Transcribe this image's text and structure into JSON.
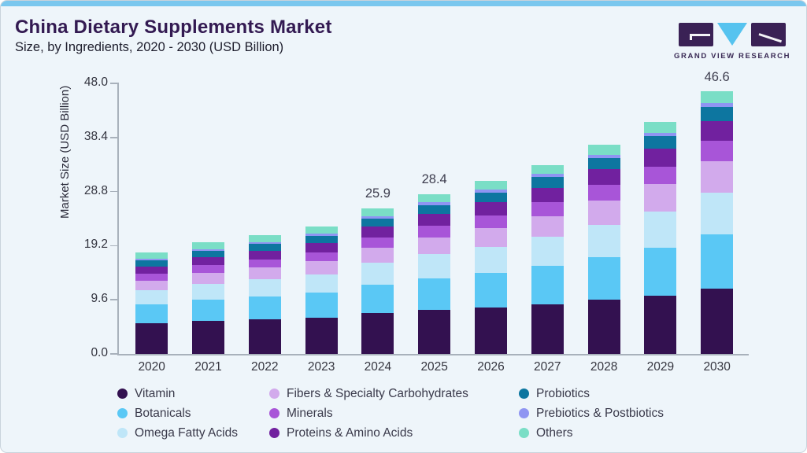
{
  "header": {
    "title": "China Dietary Supplements Market",
    "subtitle": "Size, by Ingredients, 2020 - 2030 (USD Billion)"
  },
  "logo": {
    "text": "GRAND VIEW RESEARCH",
    "rect_color": "#3a2155",
    "triangle_color": "#56c3ef"
  },
  "colors": {
    "card_bg": "#eef5fa",
    "top_strip": "#7ac7ee",
    "axis": "#a8b1bb",
    "title_text": "#331a52"
  },
  "chart_data": {
    "type": "bar",
    "stacked": true,
    "title": "China Dietary Supplements Market Size, by Ingredients, 2020 - 2030 (USD Billion)",
    "xlabel": "",
    "ylabel": "Market Size (USD Billion)",
    "ylim": [
      0,
      48.0
    ],
    "yticks": [
      48.0,
      38.4,
      28.8,
      19.2,
      9.6,
      0.0
    ],
    "grid": false,
    "legend_position": "bottom",
    "categories": [
      "2020",
      "2021",
      "2022",
      "2023",
      "2024",
      "2025",
      "2026",
      "2027",
      "2028",
      "2029",
      "2030"
    ],
    "series": [
      {
        "name": "Vitamin",
        "color": "#331150",
        "values": [
          5.42,
          5.85,
          6.12,
          6.43,
          7.23,
          7.8,
          8.23,
          8.82,
          9.56,
          10.36,
          11.56
        ]
      },
      {
        "name": "Botanicals",
        "color": "#5ac8f5",
        "values": [
          3.4,
          3.78,
          4.06,
          4.39,
          5.07,
          5.61,
          6.12,
          6.75,
          7.54,
          8.42,
          9.6
        ]
      },
      {
        "name": "Omega Fatty Acids",
        "color": "#bfe6f8",
        "values": [
          2.5,
          2.8,
          3.03,
          3.29,
          3.83,
          4.26,
          4.67,
          5.19,
          5.83,
          6.54,
          7.5
        ]
      },
      {
        "name": "Fibers & Specialty Carbohydrates",
        "color": "#d2aaec",
        "values": [
          1.71,
          1.93,
          2.1,
          2.3,
          2.7,
          3.02,
          3.34,
          3.73,
          4.22,
          4.77,
          5.5
        ]
      },
      {
        "name": "Minerals",
        "color": "#a855d8",
        "values": [
          1.21,
          1.35,
          1.46,
          1.59,
          1.85,
          2.06,
          2.26,
          2.51,
          2.82,
          3.17,
          3.63
        ]
      },
      {
        "name": "Proteins & Amino Acids",
        "color": "#71219f",
        "values": [
          1.26,
          1.4,
          1.5,
          1.62,
          1.88,
          2.07,
          2.26,
          2.49,
          2.78,
          3.11,
          3.54
        ]
      },
      {
        "name": "Probiotics",
        "color": "#0d76a0",
        "values": [
          1.1,
          1.19,
          1.25,
          1.32,
          1.5,
          1.62,
          1.73,
          1.86,
          2.03,
          2.22,
          2.47
        ]
      },
      {
        "name": "Prebiotics & Postbiotics",
        "color": "#8f95f2",
        "values": [
          0.31,
          0.33,
          0.35,
          0.38,
          0.43,
          0.47,
          0.5,
          0.55,
          0.6,
          0.66,
          0.75
        ]
      },
      {
        "name": "Others",
        "color": "#7adec6",
        "values": [
          1.1,
          1.17,
          1.22,
          1.26,
          1.4,
          1.49,
          1.56,
          1.65,
          1.76,
          1.88,
          2.05
        ]
      }
    ],
    "bar_total_labels": [
      "",
      "",
      "",
      "",
      "25.9",
      "28.4",
      "",
      "",
      "",
      "",
      "46.6"
    ],
    "legend_columns": [
      [
        "Vitamin",
        "Botanicals",
        "Omega Fatty Acids"
      ],
      [
        "Fibers & Specialty Carbohydrates",
        "Minerals",
        "Proteins & Amino Acids"
      ],
      [
        "Probiotics",
        "Prebiotics & Postbiotics",
        "Others"
      ]
    ]
  }
}
